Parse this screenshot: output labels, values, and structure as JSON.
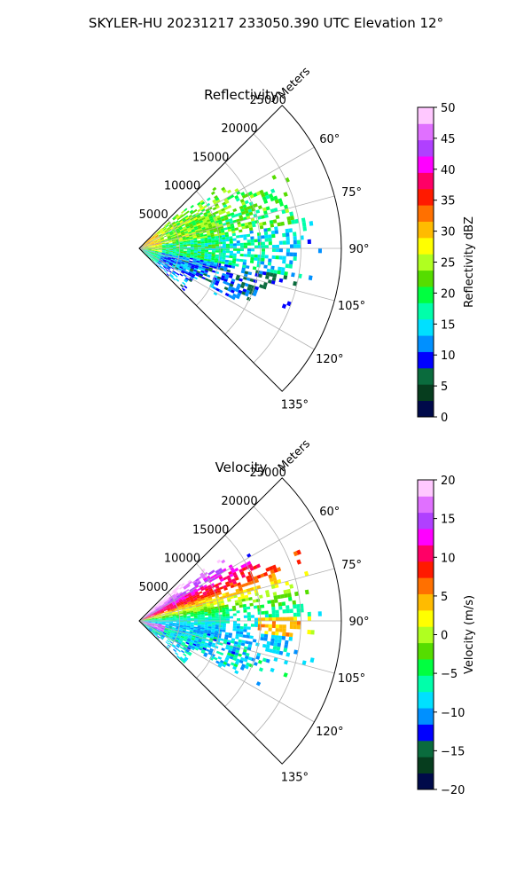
{
  "figure": {
    "suptitle": "SKYLER-HU  20231217  233050.390 UTC Elevation 12°"
  },
  "chart_data": [
    {
      "type": "heatmap",
      "projection": "polar-sector",
      "title": "Reflectivity",
      "radial_label": "Meters",
      "radial_ticks": [
        5000,
        10000,
        15000,
        20000,
        25000
      ],
      "radial_tick_labels": [
        "5000",
        "10000",
        "15000",
        "20000",
        "25000"
      ],
      "rlim": [
        0,
        25000
      ],
      "angle_ticks": [
        60,
        75,
        90,
        105,
        120,
        135
      ],
      "angle_tick_labels": [
        "60°",
        "75°",
        "90°",
        "105°",
        "120°",
        "135°"
      ],
      "angle_range_deg": [
        45,
        135
      ],
      "grid": true,
      "colorbar": {
        "label": "Reflectivity dBZ",
        "range": [
          0,
          50
        ],
        "ticks": [
          0,
          5,
          10,
          15,
          20,
          25,
          30,
          35,
          40,
          45,
          50
        ],
        "tick_labels": [
          "0",
          "5",
          "10",
          "15",
          "20",
          "25",
          "30",
          "35",
          "40",
          "45",
          "50"
        ],
        "colors": [
          "#000a4a",
          "#063d1e",
          "#0a6b3d",
          "#0000ff",
          "#0090ff",
          "#00e0ff",
          "#00ffaa",
          "#00ff40",
          "#55dd00",
          "#b0ff20",
          "#ffff00",
          "#ffbb00",
          "#ff7000",
          "#ff1a00",
          "#ff0066",
          "#ff00ff",
          "#b040ff",
          "#e070ff",
          "#ffc8ff"
        ]
      },
      "echo_coverage": "echoes concentrated near the radar, mostly 15–25 dBZ, spanning roughly 60°–115° azimuth out to ~20000 m"
    },
    {
      "type": "heatmap",
      "projection": "polar-sector",
      "title": "Velocity",
      "radial_label": "Meters",
      "radial_ticks": [
        5000,
        10000,
        15000,
        20000,
        25000
      ],
      "radial_tick_labels": [
        "5000",
        "10000",
        "15000",
        "20000",
        "25000"
      ],
      "rlim": [
        0,
        25000
      ],
      "angle_ticks": [
        60,
        75,
        90,
        105,
        120,
        135
      ],
      "angle_tick_labels": [
        "60°",
        "75°",
        "90°",
        "105°",
        "120°",
        "135°"
      ],
      "angle_range_deg": [
        45,
        135
      ],
      "grid": true,
      "colorbar": {
        "label": "Velocity (m/s)",
        "range": [
          -20,
          20
        ],
        "ticks": [
          -20,
          -15,
          -10,
          -5,
          0,
          5,
          10,
          15,
          20
        ],
        "tick_labels": [
          "−20",
          "−15",
          "−10",
          "−5",
          "0",
          "5",
          "10",
          "15",
          "20"
        ],
        "colors": [
          "#000a4a",
          "#063d1e",
          "#0a6b3d",
          "#0000ff",
          "#0090ff",
          "#00e0ff",
          "#00ffaa",
          "#00ff40",
          "#55dd00",
          "#b0ff20",
          "#ffff00",
          "#ffbb00",
          "#ff7000",
          "#ff1a00",
          "#ff0066",
          "#ff00ff",
          "#b040ff",
          "#e070ff",
          "#ffc8ff"
        ]
      },
      "echo_coverage": "positive (red/magenta) velocities on the north side, negative (green/cyan) on the south side, folded purple band near the radar"
    }
  ]
}
